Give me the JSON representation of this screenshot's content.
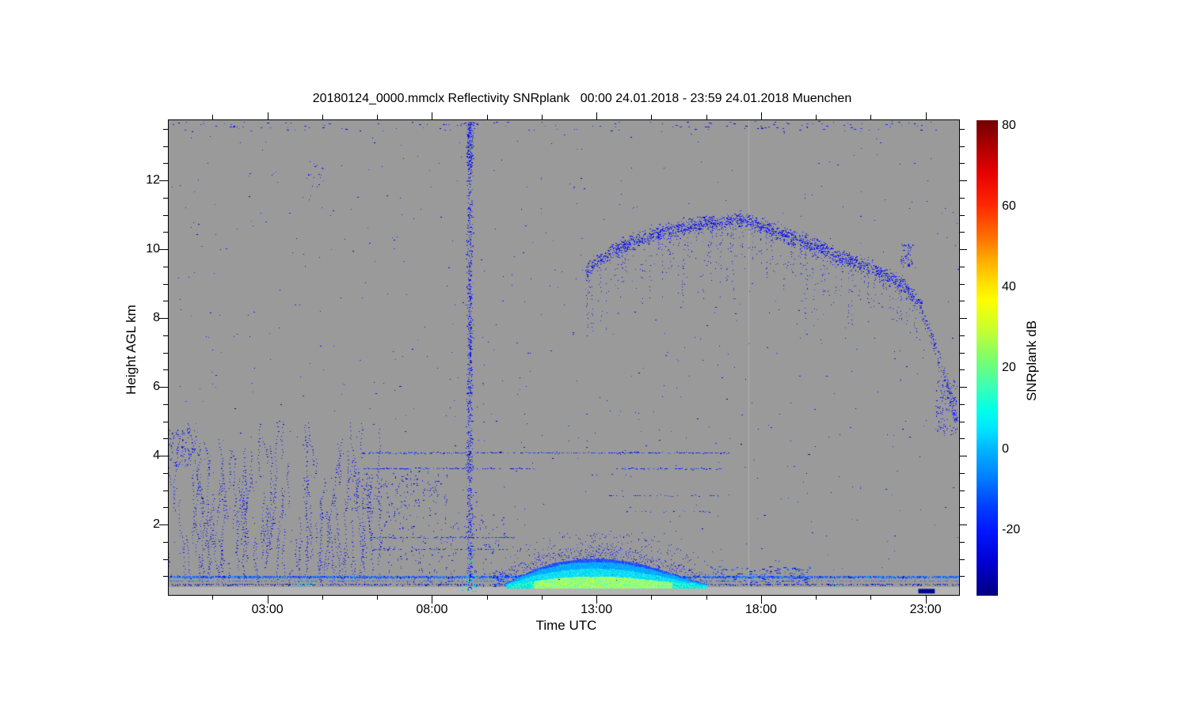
{
  "title": "20180124_0000.mmclx Reflectivity SNRplank   00:00 24.01.2018 - 23:59 24.01.2018 Muenchen",
  "axes": {
    "x": {
      "title": "Time UTC",
      "range_hours": [
        0,
        24
      ],
      "major_tick_hours": [
        3,
        8,
        13,
        18,
        23
      ],
      "minor_tick_step_hours": 1.6667,
      "tick_labels": [
        {
          "label": "03:00",
          "hour": 3
        },
        {
          "label": "08:00",
          "hour": 8
        },
        {
          "label": "13:00",
          "hour": 13
        },
        {
          "label": "18:00",
          "hour": 18
        },
        {
          "label": "23:00",
          "hour": 23
        }
      ]
    },
    "y": {
      "title": "Height AGL km",
      "range_km": [
        0,
        13.75
      ],
      "major_tick_km": [
        2,
        4,
        6,
        8,
        10,
        12
      ],
      "minor_tick_step_km": 0.5,
      "tick_labels": [
        {
          "label": "2",
          "km": 2
        },
        {
          "label": "4",
          "km": 4
        },
        {
          "label": "6",
          "km": 6
        },
        {
          "label": "8",
          "km": 8
        },
        {
          "label": "10",
          "km": 10
        },
        {
          "label": "12",
          "km": 12
        }
      ]
    }
  },
  "colorbar": {
    "title": "SNRplank dB",
    "tick_labels": [
      {
        "label": "80",
        "value": 80
      },
      {
        "label": "60",
        "value": 60
      },
      {
        "label": "40",
        "value": 40
      },
      {
        "label": "20",
        "value": 20
      },
      {
        "label": "0",
        "value": 0
      },
      {
        "label": "-20",
        "value": -20
      }
    ],
    "value_range_db": [
      -36,
      81
    ],
    "gradient": [
      [
        "#720000",
        0
      ],
      [
        "#a80000",
        5
      ],
      [
        "#e60000",
        11
      ],
      [
        "#ff2400",
        17.5
      ],
      [
        "#ff7400",
        25
      ],
      [
        "#ffb300",
        30
      ],
      [
        "#ffe100",
        34.5
      ],
      [
        "#fdff00",
        38
      ],
      [
        "#c8ff2e",
        44
      ],
      [
        "#7cff6a",
        50
      ],
      [
        "#3cffb4",
        56
      ],
      [
        "#00ffe8",
        61
      ],
      [
        "#00e4ff",
        65
      ],
      [
        "#00b4ff",
        69.3
      ],
      [
        "#0080ff",
        75
      ],
      [
        "#0040ff",
        81
      ],
      [
        "#0018ff",
        86.3
      ],
      [
        "#0000d2",
        93
      ],
      [
        "#000082",
        100
      ]
    ]
  },
  "chart_data": {
    "type": "heatmap",
    "title": "20180124_0000.mmclx Reflectivity SNRplank   00:00 24.01.2018 - 23:59 24.01.2018 Muenchen",
    "xlabel": "Time UTC",
    "ylabel": "Height AGL km",
    "x_range_hours": [
      0,
      24
    ],
    "y_range_km": [
      0,
      13.75
    ],
    "colorbar_label": "SNRplank dB",
    "colorbar_ticks_db": [
      80,
      60,
      40,
      20,
      0,
      -20
    ],
    "colors": {
      "background": "#9a9a9a",
      "subsurface_band": "#b5b5b5",
      "blues": [
        "#1414f0",
        "#1e1eff",
        "#0a0ae0",
        "#2828ff",
        "#0000c8",
        "#3050ff"
      ],
      "light_blues": [
        "#2a64ff",
        "#1e90ff",
        "#2050f0"
      ],
      "cyans": [
        "#00c8ff",
        "#00e0e8",
        "#28b4ff"
      ],
      "cyan_greens": [
        "#00e0d0",
        "#30f0c0",
        "#60f890",
        "#00c8ff"
      ],
      "mound_top_blue": [
        "#2050ff",
        "#1840f0",
        "#3060ff"
      ],
      "mound_mid_blue": [
        "#00a8ff",
        "#1890ff",
        "#00c0ff"
      ],
      "mound_cyan": [
        "#00e0f8",
        "#30e8ff",
        "#00d0e8"
      ],
      "mound_turquoise": [
        "#00f0d0",
        "#40ffc8",
        "#00e0e0"
      ],
      "mound_green_core": [
        "#58ffa8",
        "#90ff70",
        "#b8fc50",
        "#d4f840",
        "#70ffc0"
      ],
      "navy_line": [
        "#0a1ac8",
        "#1428e0",
        "#0010a0"
      ],
      "navy_segment": "#000a8c",
      "faint_line": "#b0b0b0"
    },
    "features": [
      {
        "type": "faint_vline",
        "name": "data-gap-line",
        "hour": 17.62
      },
      {
        "type": "surface",
        "name": "surface-clutter-system",
        "subsurface_band_top_km": 0.185,
        "line1_km": 0.5,
        "line2_km": 0.36,
        "line3_km": 0.27,
        "navy_segment": {
          "hours": [
            22.78,
            23.28
          ],
          "km": [
            0.02,
            0.13
          ]
        },
        "cyan_groups": [
          {
            "hours": [
              3.72,
              4.45
            ],
            "km": [
              0.16,
              0.33
            ],
            "count": 26
          },
          {
            "hours": [
              8.9,
              9.45
            ],
            "km": [
              0.05,
              0.55
            ],
            "count": 45
          },
          {
            "hours": [
              15.2,
              15.8
            ],
            "km": [
              0.1,
              0.3
            ],
            "count": 12
          },
          {
            "hours": [
              20.2,
              20.55
            ],
            "km": [
              0.14,
              0.28
            ],
            "count": 8
          }
        ]
      },
      {
        "type": "mound",
        "name": "boundary-layer-echo",
        "hours": [
          10.25,
          16.35
        ],
        "base_km": 0.16,
        "top_profile": [
          [
            10.25,
            0.28
          ],
          [
            10.5,
            0.42
          ],
          [
            10.8,
            0.56
          ],
          [
            11.2,
            0.72
          ],
          [
            11.6,
            0.84
          ],
          [
            12.0,
            0.93
          ],
          [
            12.5,
            0.99
          ],
          [
            13.0,
            1.01
          ],
          [
            13.5,
            0.98
          ],
          [
            14.0,
            0.92
          ],
          [
            14.4,
            0.83
          ],
          [
            14.8,
            0.72
          ],
          [
            15.2,
            0.6
          ],
          [
            15.6,
            0.48
          ],
          [
            16.0,
            0.35
          ],
          [
            16.35,
            0.26
          ]
        ]
      },
      {
        "type": "dash_patch",
        "name": "boundary-layer-leadin",
        "hours": [
          9.85,
          10.3
        ],
        "km": [
          0.2,
          0.6
        ],
        "count": 40
      },
      {
        "type": "dash_patch",
        "name": "boundary-layer-remnant",
        "hours": [
          16.35,
          19.5
        ],
        "km": [
          0.3,
          0.78
        ],
        "count": 140
      },
      {
        "type": "streak_field",
        "name": "lower-left-clutter",
        "hours": [
          0.0,
          6.4
        ],
        "km": [
          0.18,
          3.9
        ],
        "walks": 135
      },
      {
        "type": "patch",
        "name": "left-edge-cluster",
        "hours": [
          0.0,
          0.9
        ],
        "km": [
          3.7,
          4.8
        ],
        "count": 85,
        "streaky": true
      },
      {
        "type": "patch",
        "name": "midlevel-cluster",
        "hours": [
          5.5,
          8.5
        ],
        "km": [
          2.45,
          3.55
        ],
        "count": 150,
        "streaky": true
      },
      {
        "type": "patch",
        "name": "low-midlevel-speckle",
        "hours": [
          6.4,
          10.2
        ],
        "km": [
          0.2,
          2.4
        ],
        "count": 170,
        "streaky": true
      },
      {
        "type": "patch",
        "name": "high-isolated-cluster",
        "hours": [
          4.2,
          4.7
        ],
        "km": [
          11.8,
          12.6
        ],
        "count": 16,
        "streaky": false
      },
      {
        "type": "speckle_lines",
        "name": "point-target-lines",
        "lines": [
          {
            "km": 4.07,
            "hours": [
              5.85,
              17.0
            ],
            "density": 0.5
          },
          {
            "km": 3.62,
            "hours": [
              5.85,
              11.2
            ],
            "density": 0.48
          },
          {
            "km": 3.62,
            "hours": [
              13.6,
              16.8
            ],
            "density": 0.42
          },
          {
            "km": 2.83,
            "hours": [
              13.4,
              16.8
            ],
            "density": 0.3
          },
          {
            "km": 2.38,
            "hours": [
              13.9,
              16.5
            ],
            "density": 0.24
          },
          {
            "km": 1.62,
            "hours": [
              6.1,
              10.5
            ],
            "density": 0.5
          },
          {
            "km": 1.28,
            "hours": [
              6.2,
              10.3
            ],
            "density": 0.4
          }
        ]
      },
      {
        "type": "uniform_noise",
        "name": "background-noise-speckle",
        "hours": [
          0.02,
          23.98
        ],
        "km": [
          0.3,
          13.7
        ],
        "count": 700
      },
      {
        "type": "uniform_noise",
        "name": "top-edge-noise",
        "hours": [
          0.05,
          23.95
        ],
        "km": [
          13.42,
          13.72
        ],
        "count": 130,
        "dash": true
      },
      {
        "type": "cloud_arc",
        "name": "cirrus-cloud-band",
        "spread_km": 0.33,
        "wisp_depth_km": 2.0,
        "step_hours": 0.012,
        "ridge": [
          [
            12.68,
            9.35
          ],
          [
            13.2,
            9.78
          ],
          [
            13.8,
            10.1
          ],
          [
            14.6,
            10.38
          ],
          [
            15.5,
            10.6
          ],
          [
            16.5,
            10.76
          ],
          [
            17.5,
            10.87
          ],
          [
            18.2,
            10.62
          ],
          [
            18.9,
            10.36
          ],
          [
            19.6,
            10.1
          ],
          [
            20.3,
            9.78
          ],
          [
            21.0,
            9.56
          ],
          [
            21.6,
            9.32
          ],
          [
            22.3,
            8.96
          ],
          [
            22.9,
            8.28
          ]
        ]
      },
      {
        "type": "patch",
        "name": "cloud-clump",
        "hours": [
          22.25,
          22.62
        ],
        "km": [
          9.5,
          10.15
        ],
        "count": 55,
        "streaky": true
      },
      {
        "type": "tail",
        "name": "descending-cloud-tail",
        "count": 150,
        "spread_km": 0.3,
        "points": [
          [
            22.9,
            8.2
          ],
          [
            23.25,
            7.3
          ],
          [
            23.5,
            6.5
          ],
          [
            23.75,
            5.7
          ],
          [
            23.95,
            4.9
          ]
        ]
      },
      {
        "type": "patch",
        "name": "right-edge-cluster",
        "hours": [
          23.3,
          24.0
        ],
        "km": [
          4.6,
          6.2
        ],
        "count": 120,
        "streaky": true
      },
      {
        "type": "vertical_streak",
        "name": "interference-streak",
        "hour_center": 9.15,
        "hour_sigma": 0.085,
        "km": [
          0.1,
          13.72
        ],
        "count": 1050,
        "cyan_below_km": 1.7
      }
    ]
  }
}
